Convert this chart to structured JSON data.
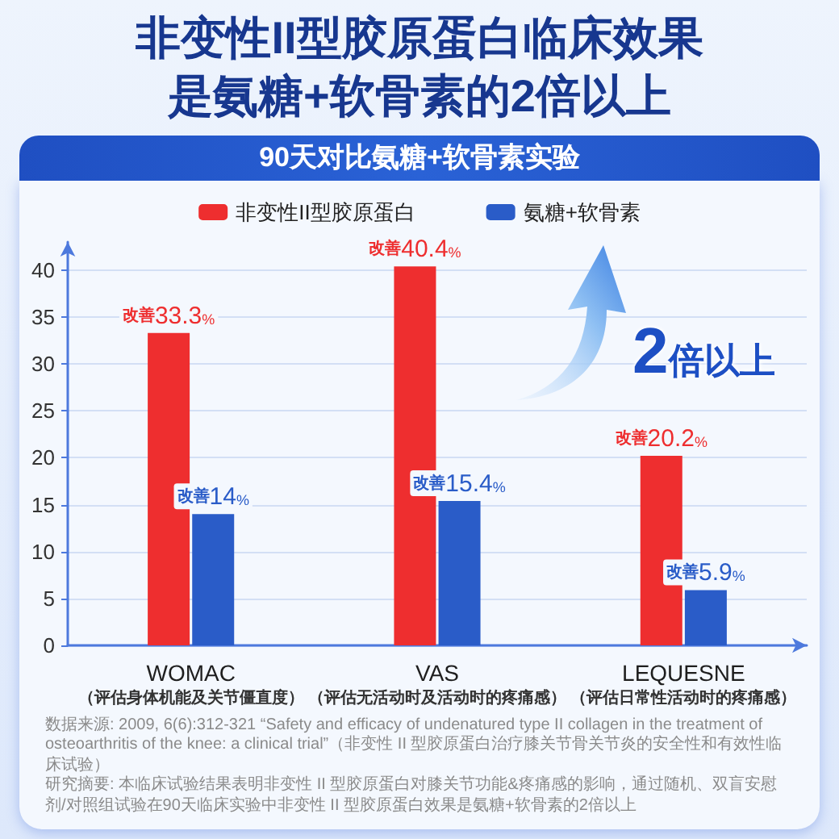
{
  "chart_data": {
    "type": "bar",
    "title": "非变性II型胶原蛋白临床效果是氨糖+软骨素的2倍以上",
    "subtitle": "90天对比氨糖+软骨素实验",
    "categories": [
      "WOMAC\n（评估身体机能及关节僵直度）",
      "VAS\n（评估无活动时及活动时的疼痛感）",
      "LEQUESNE\n（评估日常性活动时的疼痛感）"
    ],
    "series": [
      {
        "name": "非变性II型胶原蛋白",
        "color": "#ee2e2f",
        "values": [
          33.3,
          40.4,
          20.2
        ],
        "value_labels": [
          "改善33.3%",
          "改善40.4%",
          "改善20.2%"
        ]
      },
      {
        "name": "氨糖+软骨素",
        "color": "#2a5cc8",
        "values": [
          14,
          15.4,
          5.9
        ],
        "value_labels": [
          "改善14%",
          "改善15.4%",
          "改善5.9%"
        ]
      }
    ],
    "ylim": [
      0,
      43
    ],
    "yticks": [
      0,
      5,
      10,
      15,
      20,
      25,
      30,
      35,
      40
    ],
    "grid": "y",
    "legend": "top",
    "annotations": [
      "2倍以上",
      "数据来源: 2009, 6(6):312-321 “Safety and efficacy of undenatured type II collagen in the treatment of osteoarthritis of the knee: a clinical trial”（非变性 II 型胶原蛋白治疗膝关节骨关节炎的安全性和有效性临床试验）",
      "研究摘要: 本临床试验结果表明非变性 II 型胶原蛋白对膝关节功能&疼痛感的影响，通过随机、双盲安慰剂/对照组试验在90天临床实验中非变性 II 型胶原蛋白效果是氨糖+软骨素的2倍以上"
    ]
  }
}
